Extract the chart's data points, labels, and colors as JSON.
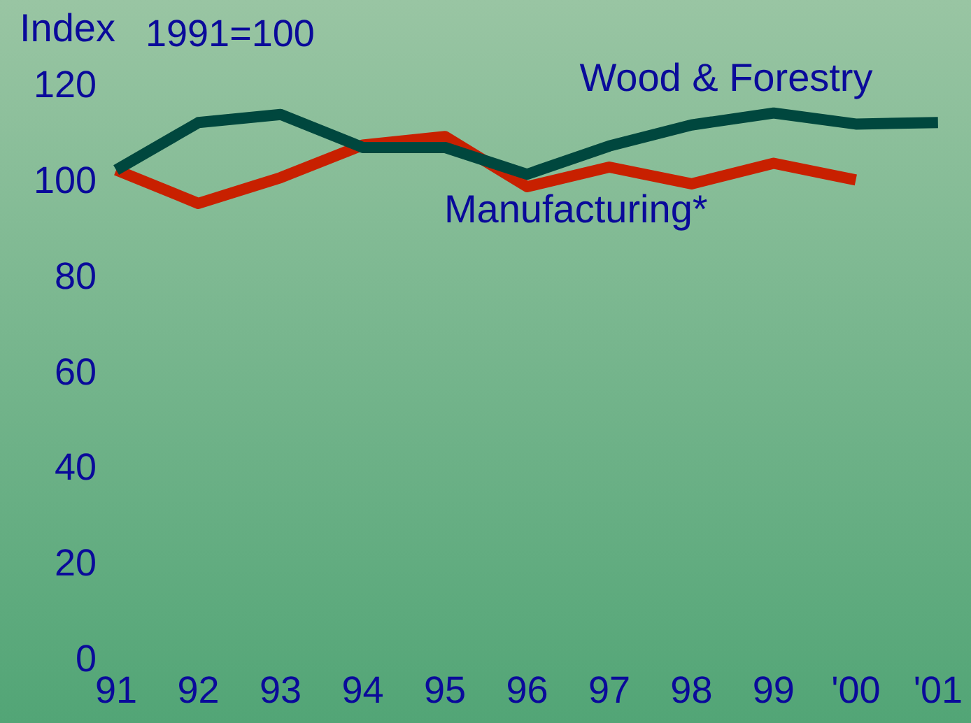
{
  "chart_data": {
    "type": "line",
    "ylabel": "Index",
    "subtitle": "1991=100",
    "categories": [
      "91",
      "92",
      "93",
      "94",
      "95",
      "96",
      "97",
      "98",
      "99",
      "'00",
      "'01"
    ],
    "series": [
      {
        "name": "Wood & Forestry",
        "color": "#00473e",
        "values": [
          102.6,
          112.5,
          114.2,
          107.3,
          107.3,
          101.7,
          107.6,
          112,
          114.5,
          112.2,
          112.5
        ]
      },
      {
        "name": "Manufacturing*",
        "color": "#c82000",
        "values": [
          102.6,
          95.6,
          101,
          107.8,
          109.6,
          99.1,
          103.2,
          99.7,
          104,
          100.5,
          null
        ]
      }
    ],
    "ylim": [
      0,
      120
    ],
    "yticks": [
      0,
      20,
      40,
      60,
      80,
      100,
      120
    ],
    "grid": false,
    "legend": false,
    "marker": "none",
    "line_style": "solid"
  }
}
